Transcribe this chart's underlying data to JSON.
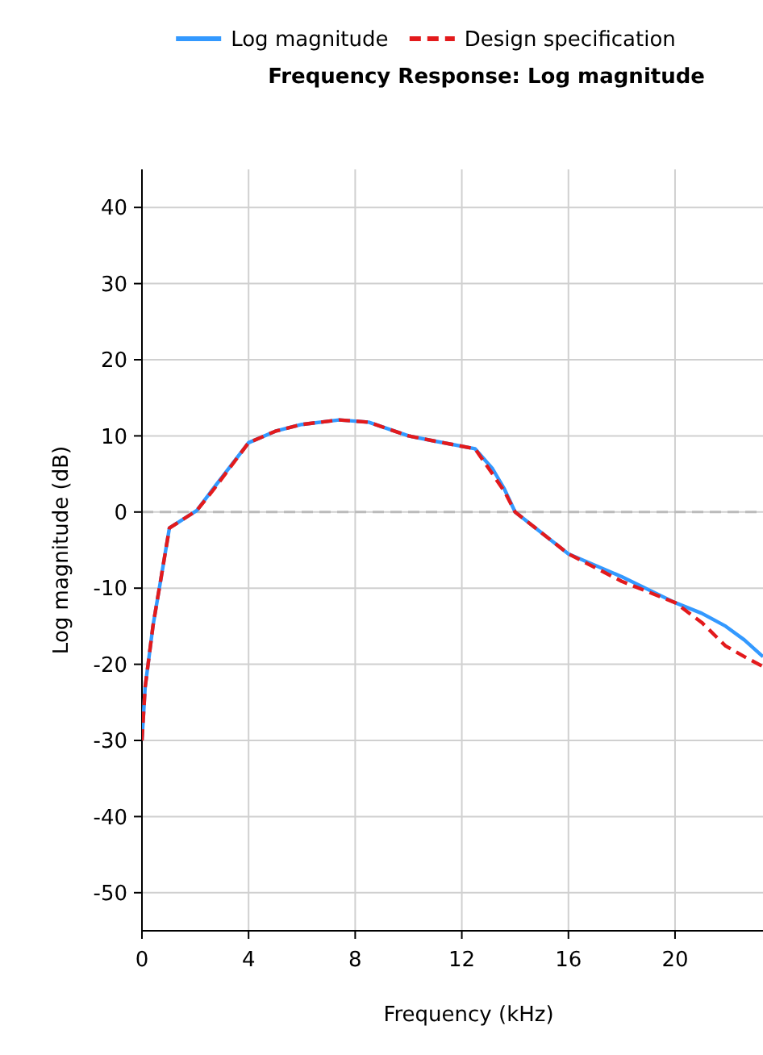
{
  "chart_data": {
    "type": "line",
    "title": "Frequency Response: Log magnitude",
    "xlabel": "Frequency (kHz)",
    "ylabel": "Log magnitude (dB)",
    "xlim": [
      0,
      23.3
    ],
    "xticks": [
      0,
      4,
      8,
      12,
      16,
      20
    ],
    "ylim": [
      -55,
      45
    ],
    "yticks": [
      -50,
      -40,
      -30,
      -20,
      -10,
      0,
      10,
      20,
      30,
      40
    ],
    "grid": true,
    "legend": "top",
    "ref_lines": [
      {
        "axis": "y",
        "value": 0,
        "color": "#bbbbbb",
        "line_style": "dashed"
      }
    ],
    "series": [
      {
        "name": "Log magnitude",
        "color": "#3399ff",
        "line_style": "solid",
        "x": [
          0,
          0.12,
          0.42,
          0.7,
          1.03,
          2.06,
          2.7,
          4,
          5,
          6,
          7.4,
          8.5,
          10,
          11,
          12.5,
          13.15,
          13.6,
          14,
          16,
          18,
          20,
          21,
          21.9,
          22.6,
          23.3
        ],
        "values": [
          -30,
          -23,
          -14.8,
          -9,
          -2.1,
          0.2,
          3.2,
          9.1,
          10.6,
          11.5,
          12.1,
          11.8,
          10,
          9.3,
          8.3,
          5.7,
          3,
          0,
          -5.5,
          -8.5,
          -11.9,
          -13.3,
          -15,
          -16.8,
          -19
        ]
      },
      {
        "name": "Design specification",
        "color": "#e31a1c",
        "line_style": "dashed",
        "x": [
          0,
          0.12,
          0.42,
          0.7,
          1.03,
          2.06,
          2.7,
          4,
          5,
          6,
          7.4,
          8.5,
          10,
          11,
          12.5,
          13.15,
          13.6,
          14,
          16,
          18,
          20,
          21,
          21.9,
          22.6,
          23.3
        ],
        "values": [
          -30,
          -23,
          -14.8,
          -9,
          -2.1,
          0.2,
          3,
          9.1,
          10.6,
          11.5,
          12.1,
          11.8,
          10,
          9.3,
          8.3,
          5,
          2.7,
          0,
          -5.5,
          -9.1,
          -11.9,
          -14.5,
          -17.6,
          -19,
          -20.3
        ]
      }
    ]
  }
}
